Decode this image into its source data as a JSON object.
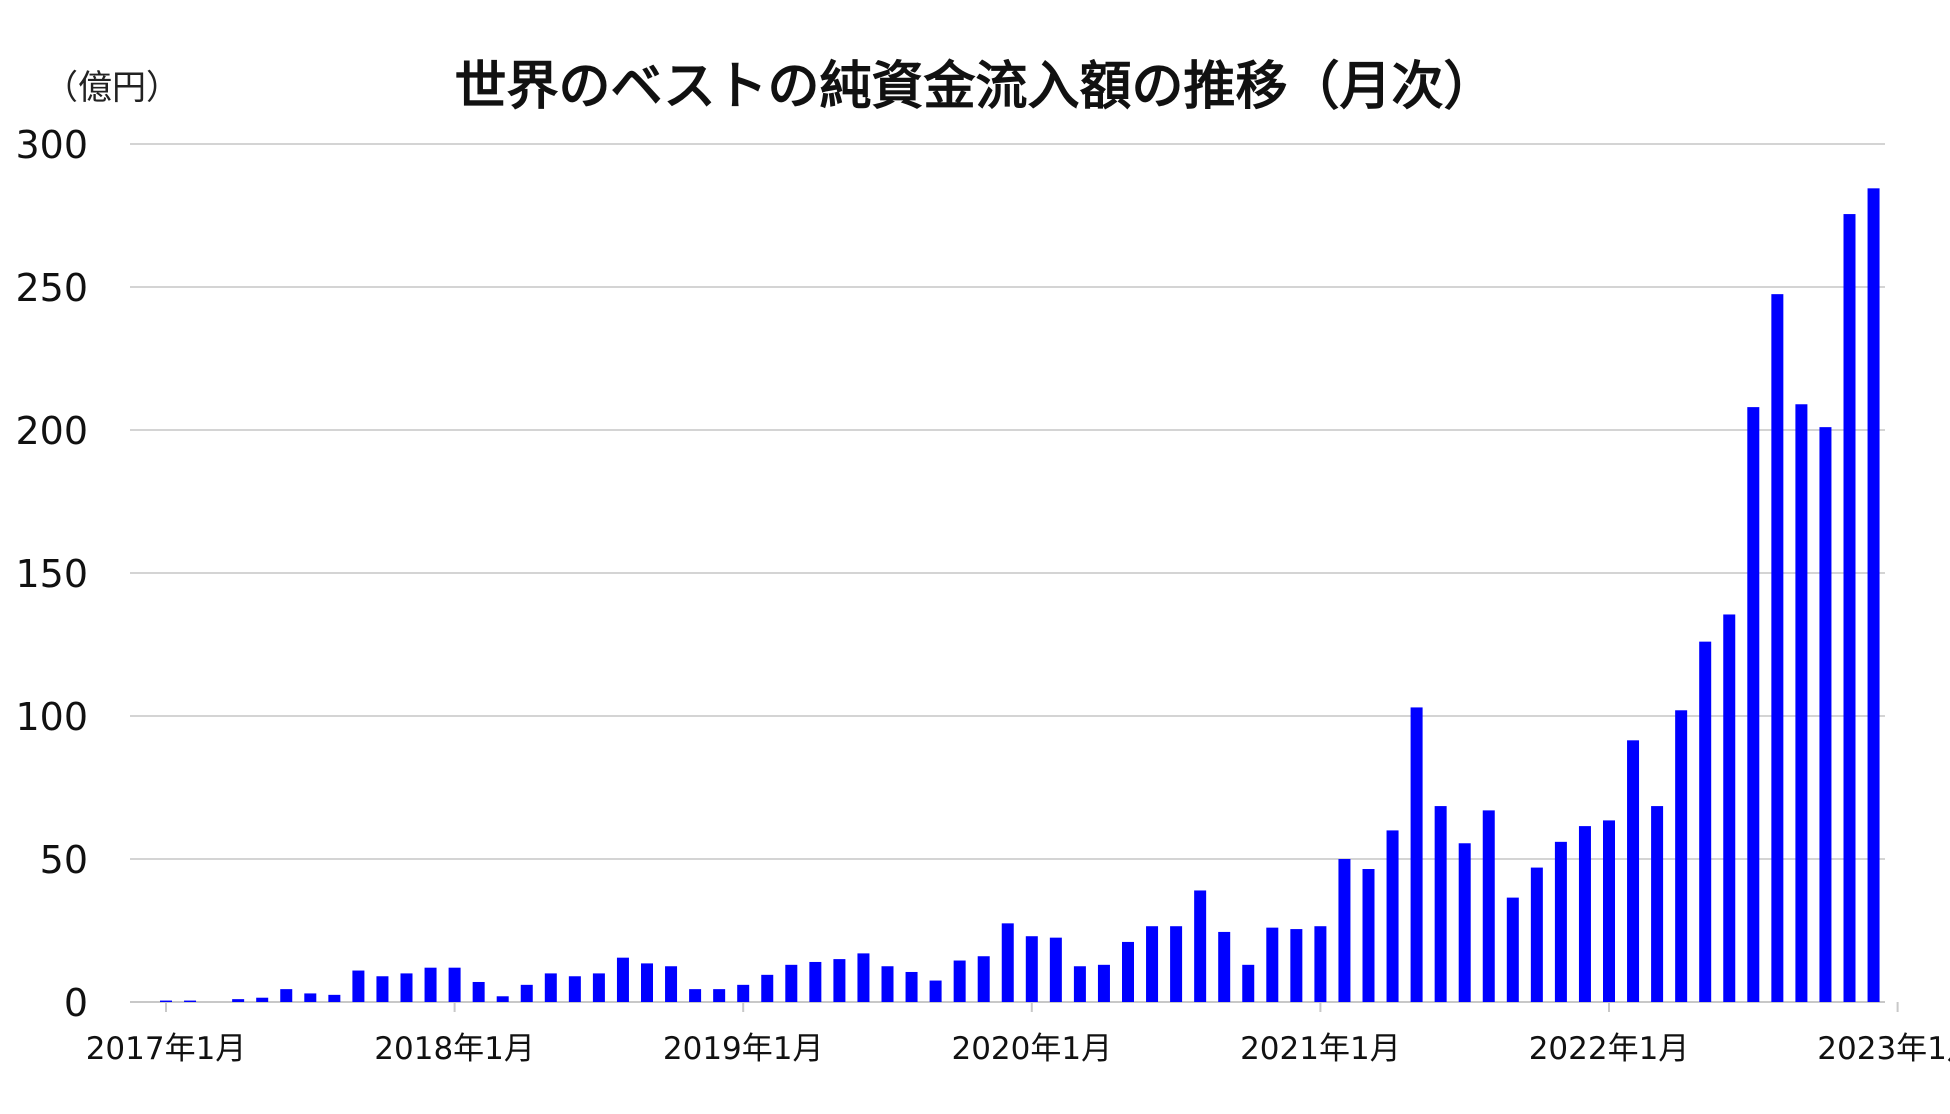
{
  "chart_data": {
    "type": "bar",
    "title": "世界のベストの純資金流入額の推移（月次）",
    "unit_label": "（億円）",
    "xlabel": "",
    "ylabel": "",
    "ylim": [
      0,
      300
    ],
    "yticks": [
      0,
      50,
      100,
      150,
      200,
      250,
      300
    ],
    "xtick_labels": [
      "2017年1月",
      "2018年1月",
      "2019年1月",
      "2020年1月",
      "2021年1月",
      "2022年1月",
      "2023年1月"
    ],
    "grid": true,
    "bar_color": "#0000ff",
    "categories": [
      "2017年1月",
      "2017年2月",
      "2017年3月",
      "2017年4月",
      "2017年5月",
      "2017年6月",
      "2017年7月",
      "2017年8月",
      "2017年9月",
      "2017年10月",
      "2017年11月",
      "2017年12月",
      "2018年1月",
      "2018年2月",
      "2018年3月",
      "2018年4月",
      "2018年5月",
      "2018年6月",
      "2018年7月",
      "2018年8月",
      "2018年9月",
      "2018年10月",
      "2018年11月",
      "2018年12月",
      "2019年1月",
      "2019年2月",
      "2019年3月",
      "2019年4月",
      "2019年5月",
      "2019年6月",
      "2019年7月",
      "2019年8月",
      "2019年9月",
      "2019年10月",
      "2019年11月",
      "2019年12月",
      "2020年1月",
      "2020年2月",
      "2020年3月",
      "2020年4月",
      "2020年5月",
      "2020年6月",
      "2020年7月",
      "2020年8月",
      "2020年9月",
      "2020年10月",
      "2020年11月",
      "2020年12月",
      "2021年1月",
      "2021年2月",
      "2021年3月",
      "2021年4月",
      "2021年5月",
      "2021年6月",
      "2021年7月",
      "2021年8月",
      "2021年9月",
      "2021年10月",
      "2021年11月",
      "2021年12月",
      "2022年1月",
      "2022年2月",
      "2022年3月",
      "2022年4月",
      "2022年5月",
      "2022年6月",
      "2022年7月",
      "2022年8月",
      "2022年9月",
      "2022年10月",
      "2022年11月",
      "2022年12月",
      "2023年1月"
    ],
    "values": [
      0.5,
      0.5,
      0,
      1,
      1.5,
      4.5,
      3,
      2.5,
      11,
      9,
      10,
      12,
      12,
      7,
      2,
      6,
      10,
      9,
      10,
      15.5,
      13.5,
      12.5,
      4.5,
      4.5,
      6,
      9.5,
      13,
      14,
      15,
      17,
      12.5,
      10.5,
      7.5,
      14.5,
      16,
      27.5,
      23,
      22.5,
      12.5,
      13,
      21,
      26.5,
      26.5,
      39,
      24.5,
      13,
      26,
      25.5,
      26.5,
      50,
      46.5,
      60,
      103,
      68.5,
      55.5,
      67,
      36.5,
      47,
      56,
      61.5,
      63.5,
      91.5,
      68.5,
      102,
      126,
      135.5,
      208,
      247.5,
      209,
      201,
      275.5,
      284.5,
      null
    ]
  }
}
